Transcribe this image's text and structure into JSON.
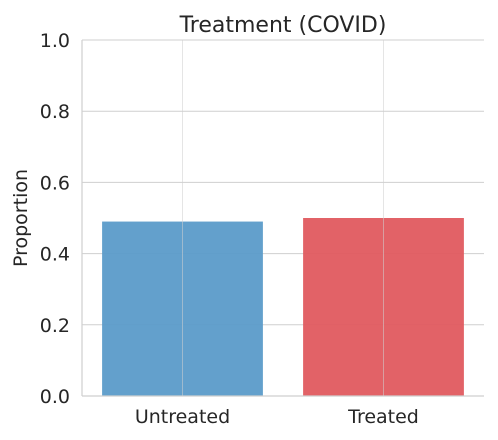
{
  "chart_data": {
    "type": "bar",
    "title": "Treatment (COVID)",
    "xlabel": "",
    "ylabel": "Proportion",
    "categories": [
      "Untreated",
      "Treated"
    ],
    "values": [
      0.49,
      0.5
    ],
    "colors": [
      "#5b9bc9",
      "#e05a5f"
    ],
    "ylim": [
      0,
      1.0
    ],
    "yticks": [
      "0.0",
      "0.2",
      "0.4",
      "0.6",
      "0.8",
      "1.0"
    ],
    "grid": true,
    "legend": "none"
  }
}
